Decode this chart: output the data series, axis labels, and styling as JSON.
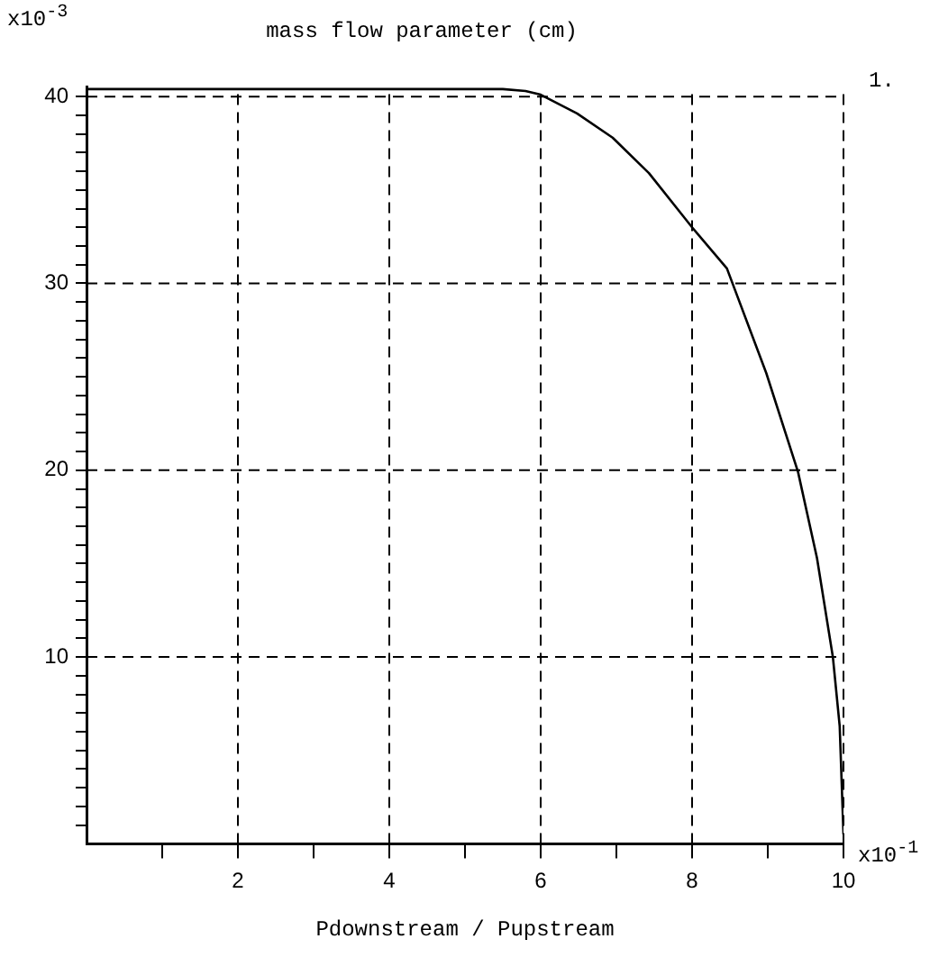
{
  "chart_data": {
    "type": "line",
    "title": "mass flow parameter (cm)",
    "xlabel": "Pdownstream / Pupstream",
    "x": [
      0,
      5.5,
      5.8,
      6,
      6.48,
      6.95,
      7.43,
      8,
      8.46,
      8.98,
      9.4,
      9.65,
      9.86,
      9.95,
      10
    ],
    "series": [
      {
        "color": "#000000",
        "values": [
          40.4,
          40.4,
          40.3,
          40.1,
          39.1,
          37.8,
          35.9,
          33.0,
          30.8,
          25.2,
          19.9,
          15.3,
          10,
          6.3,
          0.5
        ]
      }
    ],
    "xlim": [
      0,
      10
    ],
    "ylim": [
      0,
      40.5
    ],
    "xticks": [
      {
        "value": 1,
        "label": null
      },
      2,
      {
        "value": 3,
        "label": null
      },
      4,
      {
        "value": 5,
        "label": null
      },
      6,
      {
        "value": 7,
        "label": null
      },
      8,
      {
        "value": 9,
        "label": null
      },
      10
    ],
    "yticks": [
      {
        "value": 1,
        "label": null
      },
      {
        "value": 2,
        "label": null
      },
      {
        "value": 3,
        "label": null
      },
      {
        "value": 4,
        "label": null
      },
      {
        "value": 5,
        "label": null
      },
      {
        "value": 6,
        "label": null
      },
      {
        "value": 7,
        "label": null
      },
      {
        "value": 8,
        "label": null
      },
      {
        "value": 9,
        "label": null
      },
      10,
      {
        "value": 11,
        "label": null
      },
      {
        "value": 12,
        "label": null
      },
      {
        "value": 13,
        "label": null
      },
      {
        "value": 14,
        "label": null
      },
      {
        "value": 15,
        "label": null
      },
      {
        "value": 16,
        "label": null
      },
      {
        "value": 17,
        "label": null
      },
      {
        "value": 18,
        "label": null
      },
      {
        "value": 19,
        "label": null
      },
      20,
      {
        "value": 21,
        "label": null
      },
      {
        "value": 22,
        "label": null
      },
      {
        "value": 23,
        "label": null
      },
      {
        "value": 24,
        "label": null
      },
      {
        "value": 25,
        "label": null
      },
      {
        "value": 26,
        "label": null
      },
      {
        "value": 27,
        "label": null
      },
      {
        "value": 28,
        "label": null
      },
      {
        "value": 29,
        "label": null
      },
      30,
      {
        "value": 31,
        "label": null
      },
      {
        "value": 32,
        "label": null
      },
      {
        "value": 33,
        "label": null
      },
      {
        "value": 34,
        "label": null
      },
      {
        "value": 35,
        "label": null
      },
      {
        "value": 36,
        "label": null
      },
      {
        "value": 37,
        "label": null
      },
      {
        "value": 38,
        "label": null
      },
      {
        "value": 39,
        "label": null
      },
      40
    ],
    "grid": true,
    "legend": false,
    "marker": "none",
    "line_style": "solid",
    "annotations": [
      "x10$^{-3}$",
      "x10$^{-1}$",
      "1."
    ]
  }
}
